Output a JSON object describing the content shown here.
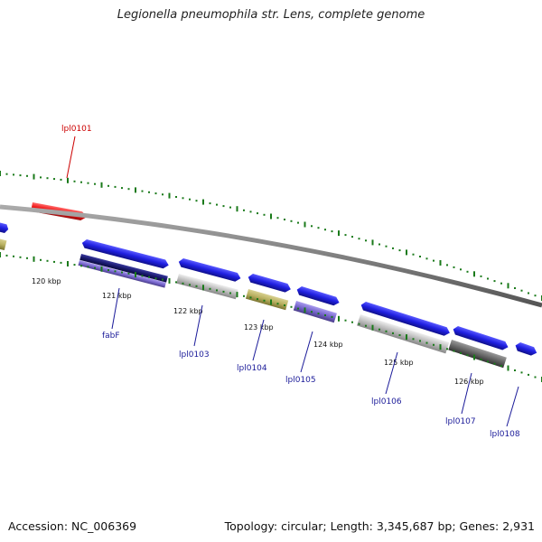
{
  "title": "Legionella pneumophila str. Lens, complete genome",
  "footer": {
    "accession": "Accession: NC_006369",
    "summary": "Topology: circular; Length: 3,345,687 bp; Genes: 2,931"
  },
  "ticks": [
    "120 kbp",
    "121 kbp",
    "122 kbp",
    "123 kbp",
    "124 kbp",
    "125 kbp",
    "126 kbp"
  ],
  "gene_labels": [
    {
      "name": "lpl0101",
      "color": "#cc0000"
    },
    {
      "name": "fabF",
      "color": "#1a1a99"
    },
    {
      "name": "lpl0103",
      "color": "#1a1a99"
    },
    {
      "name": "lpl0104",
      "color": "#1a1a99"
    },
    {
      "name": "lpl0105",
      "color": "#1a1a99"
    },
    {
      "name": "lpl0106",
      "color": "#1a1a99"
    },
    {
      "name": "lpl0107",
      "color": "#1a1a99"
    },
    {
      "name": "lpl0108",
      "color": "#1a1a99"
    }
  ],
  "colors": {
    "backbone": "#808080",
    "forward_gene": "#1f1fe0",
    "reverse_gene": "#ee1111",
    "tick_green": "#1a7a1a",
    "cog_navy": "#1a1a6e",
    "cog_purple": "#7766cc",
    "cog_grey": "#bbbbbb",
    "cog_olive": "#b8b060",
    "cog_darkgrey": "#666666"
  }
}
